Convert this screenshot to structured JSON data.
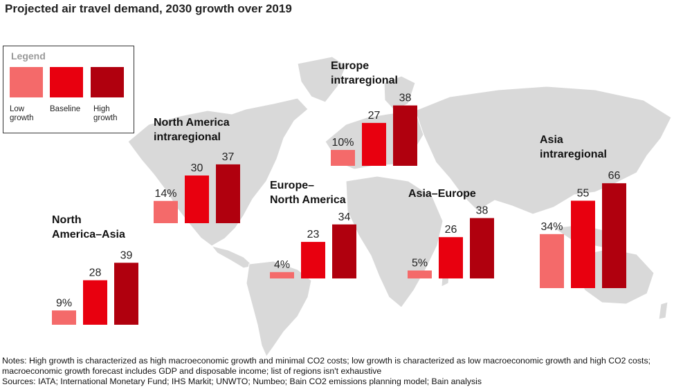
{
  "title": "Projected air travel demand, 2030 growth over 2019",
  "legend": {
    "title": "Legend",
    "items": [
      {
        "label": "Low growth",
        "color": "#f46a6a"
      },
      {
        "label": "Baseline",
        "color": "#e8000f"
      },
      {
        "label": "High growth",
        "color": "#b0000e"
      }
    ]
  },
  "chart_data": {
    "type": "bar",
    "unit": "%",
    "ylim": [
      0,
      70
    ],
    "scenarios": [
      "Low growth",
      "Baseline",
      "High growth"
    ],
    "colors": [
      "#f46a6a",
      "#e8000f",
      "#b0000e"
    ],
    "groups": [
      {
        "name": "North America–Asia",
        "label_lines": [
          "North",
          "America–Asia"
        ],
        "values": [
          9,
          28,
          39
        ],
        "value_labels": [
          "9%",
          "28",
          "39"
        ]
      },
      {
        "name": "North America intraregional",
        "label_lines": [
          "North America",
          "intraregional"
        ],
        "values": [
          14,
          30,
          37
        ],
        "value_labels": [
          "14%",
          "30",
          "37"
        ]
      },
      {
        "name": "Europe–North America",
        "label_lines": [
          "Europe–",
          "North America"
        ],
        "values": [
          4,
          23,
          34
        ],
        "value_labels": [
          "4%",
          "23",
          "34"
        ]
      },
      {
        "name": "Europe intraregional",
        "label_lines": [
          "Europe",
          "intraregional"
        ],
        "values": [
          10,
          27,
          38
        ],
        "value_labels": [
          "10%",
          "27",
          "38"
        ]
      },
      {
        "name": "Asia–Europe",
        "label_lines": [
          "Asia–Europe"
        ],
        "values": [
          5,
          26,
          38
        ],
        "value_labels": [
          "5%",
          "26",
          "38"
        ]
      },
      {
        "name": "Asia intraregional",
        "label_lines": [
          "Asia",
          "intraregional"
        ],
        "values": [
          34,
          55,
          66
        ],
        "value_labels": [
          "34%",
          "55",
          "66"
        ]
      }
    ]
  },
  "notes": "Notes: High growth is characterized as high macroeconomic growth and minimal CO2 costs; low growth is characterized as low macroeconomic growth and high CO2 costs; macroeconomic growth forecast includes GDP and disposable income; list of regions isn't exhaustive",
  "sources": "Sources: IATA; International Monetary Fund; IHS Markit; UNWTO; Numbeo; Bain CO2 emissions planning model; Bain analysis"
}
